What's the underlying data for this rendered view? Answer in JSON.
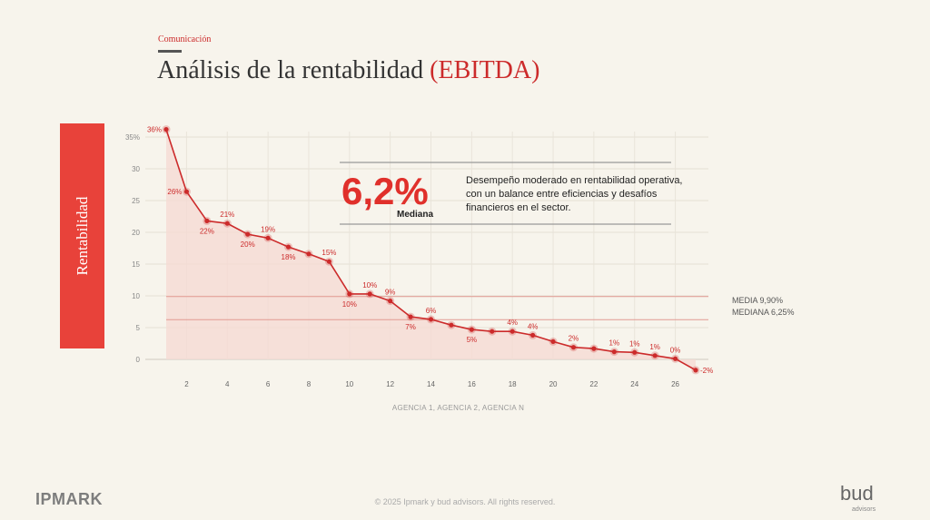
{
  "header": {
    "section": "Comunicación",
    "title_main": "Análisis de la rentabilidad ",
    "title_accent": "(EBITDA)"
  },
  "y_band_label": "Rentabilidad",
  "kpi": {
    "value": "6,2%",
    "label": "Mediana",
    "description": "Desempeño moderado en rentabilidad operativa, con un balance entre eficiencias y desafíos financieros en el sector."
  },
  "reference_lines": [
    {
      "label": "MEDIA 9,90%",
      "value": 9.9
    },
    {
      "label": "MEDIANA 6,25%",
      "value": 6.25
    }
  ],
  "footer": {
    "logo": "IPMARK",
    "copyright": "© 2025 Ipmark y bud advisors. All rights reserved.",
    "brand": "bud",
    "brand_sub": "advisors"
  },
  "colors": {
    "accent": "#e0302b",
    "band": "#e8423a",
    "line": "#cc2b2b",
    "area": "#f6d9d3",
    "background": "#f7f4ec"
  },
  "chart_data": {
    "type": "line",
    "title": "",
    "xlabel": "AGENCIA 1, AGENCIA 2, AGENCIA N",
    "ylabel": "Rentabilidad",
    "xlim": [
      1,
      27
    ],
    "ylim": [
      0,
      35
    ],
    "x_ticks": [
      2,
      4,
      6,
      8,
      10,
      12,
      14,
      16,
      18,
      20,
      22,
      24,
      26
    ],
    "y_ticks": [
      {
        "value": 0,
        "label": "0"
      },
      {
        "value": 5,
        "label": "5"
      },
      {
        "value": 10,
        "label": "10"
      },
      {
        "value": 15,
        "label": "15"
      },
      {
        "value": 20,
        "label": "20"
      },
      {
        "value": 25,
        "label": "25"
      },
      {
        "value": 30,
        "label": "30"
      },
      {
        "value": 35,
        "label": "35%"
      }
    ],
    "grid": true,
    "area_fill": true,
    "x": [
      1,
      2,
      3,
      4,
      5,
      6,
      7,
      8,
      9,
      10,
      11,
      12,
      13,
      14,
      15,
      16,
      17,
      18,
      19,
      20,
      21,
      22,
      23,
      24,
      25,
      26,
      27
    ],
    "values": [
      36.2,
      26.4,
      21.8,
      21.4,
      19.7,
      19.1,
      17.7,
      16.6,
      15.4,
      10.3,
      10.3,
      9.2,
      6.7,
      6.3,
      5.4,
      4.7,
      4.4,
      4.4,
      3.8,
      2.8,
      1.9,
      1.7,
      1.2,
      1.1,
      0.6,
      0.1,
      -1.7
    ],
    "data_labels": [
      {
        "x": 1,
        "text": "36%",
        "pos": "left"
      },
      {
        "x": 2,
        "text": "26%",
        "pos": "left"
      },
      {
        "x": 3,
        "text": "22%",
        "pos": "below"
      },
      {
        "x": 4,
        "text": "21%",
        "pos": "above"
      },
      {
        "x": 5,
        "text": "20%",
        "pos": "below"
      },
      {
        "x": 6,
        "text": "19%",
        "pos": "above"
      },
      {
        "x": 7,
        "text": "18%",
        "pos": "below"
      },
      {
        "x": 9,
        "text": "15%",
        "pos": "above"
      },
      {
        "x": 10,
        "text": "10%",
        "pos": "below"
      },
      {
        "x": 11,
        "text": "10%",
        "pos": "above"
      },
      {
        "x": 12,
        "text": "9%",
        "pos": "above"
      },
      {
        "x": 13,
        "text": "7%",
        "pos": "below"
      },
      {
        "x": 14,
        "text": "6%",
        "pos": "above"
      },
      {
        "x": 16,
        "text": "5%",
        "pos": "below"
      },
      {
        "x": 18,
        "text": "4%",
        "pos": "above"
      },
      {
        "x": 19,
        "text": "4%",
        "pos": "above"
      },
      {
        "x": 21,
        "text": "2%",
        "pos": "above"
      },
      {
        "x": 23,
        "text": "1%",
        "pos": "above"
      },
      {
        "x": 24,
        "text": "1%",
        "pos": "above"
      },
      {
        "x": 25,
        "text": "1%",
        "pos": "above"
      },
      {
        "x": 26,
        "text": "0%",
        "pos": "above"
      },
      {
        "x": 27,
        "text": "-2%",
        "pos": "right"
      }
    ]
  }
}
